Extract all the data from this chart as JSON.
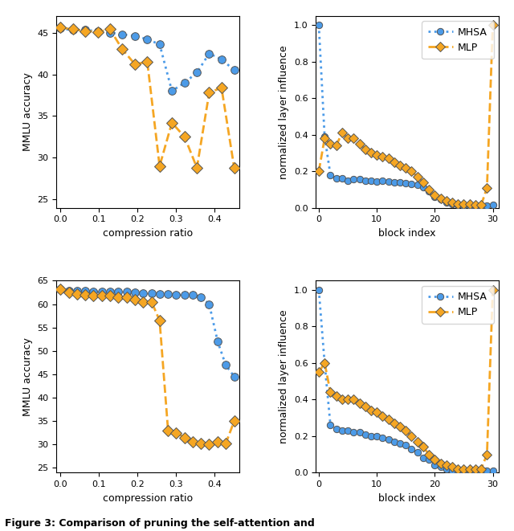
{
  "top_left": {
    "xlabel": "compression ratio",
    "ylabel": "MMLU accuracy",
    "mhsa_x": [
      0.0,
      0.032,
      0.065,
      0.097,
      0.129,
      0.161,
      0.194,
      0.226,
      0.258,
      0.29,
      0.323,
      0.355,
      0.387,
      0.419,
      0.452
    ],
    "mhsa_y": [
      45.5,
      45.3,
      45.3,
      45.2,
      45.0,
      44.8,
      44.6,
      44.2,
      43.6,
      38.0,
      39.0,
      40.2,
      42.5,
      41.8,
      40.5
    ],
    "mlp_x": [
      0.0,
      0.032,
      0.065,
      0.097,
      0.129,
      0.161,
      0.194,
      0.226,
      0.258,
      0.29,
      0.323,
      0.355,
      0.387,
      0.419,
      0.452
    ],
    "mlp_y": [
      45.6,
      45.4,
      45.2,
      45.1,
      45.4,
      43.0,
      41.2,
      41.5,
      29.0,
      34.2,
      32.5,
      28.8,
      37.8,
      38.4,
      28.8
    ],
    "ylim": [
      24,
      47
    ],
    "xlim": [
      -0.01,
      0.465
    ],
    "yticks": [
      25,
      30,
      35,
      40,
      45
    ]
  },
  "top_right": {
    "xlabel": "block index",
    "ylabel": "normalized layer influence",
    "mhsa_x": [
      0,
      1,
      2,
      3,
      4,
      5,
      6,
      7,
      8,
      9,
      10,
      11,
      12,
      13,
      14,
      15,
      16,
      17,
      18,
      19,
      20,
      21,
      22,
      23,
      24,
      25,
      26,
      27,
      28,
      29,
      30
    ],
    "mhsa_y": [
      1.0,
      0.39,
      0.18,
      0.16,
      0.16,
      0.15,
      0.155,
      0.155,
      0.15,
      0.15,
      0.145,
      0.15,
      0.145,
      0.14,
      0.14,
      0.135,
      0.13,
      0.125,
      0.115,
      0.09,
      0.06,
      0.045,
      0.03,
      0.02,
      0.015,
      0.01,
      0.01,
      0.01,
      0.01,
      0.01,
      0.015
    ],
    "mlp_x": [
      0,
      1,
      2,
      3,
      4,
      5,
      6,
      7,
      8,
      9,
      10,
      11,
      12,
      13,
      14,
      15,
      16,
      17,
      18,
      19,
      20,
      21,
      22,
      23,
      24,
      25,
      26,
      27,
      28,
      29,
      30
    ],
    "mlp_y": [
      0.2,
      0.38,
      0.35,
      0.34,
      0.41,
      0.38,
      0.38,
      0.35,
      0.32,
      0.3,
      0.29,
      0.28,
      0.27,
      0.25,
      0.23,
      0.22,
      0.2,
      0.17,
      0.14,
      0.1,
      0.07,
      0.05,
      0.04,
      0.03,
      0.02,
      0.02,
      0.02,
      0.015,
      0.015,
      0.11,
      1.0
    ],
    "ylim": [
      0.0,
      1.05
    ],
    "xlim": [
      -0.5,
      31
    ]
  },
  "bottom_left": {
    "xlabel": "compression ratio",
    "ylabel": "MMLU accuracy",
    "mhsa_x": [
      0.0,
      0.022,
      0.043,
      0.065,
      0.086,
      0.108,
      0.129,
      0.151,
      0.172,
      0.194,
      0.215,
      0.237,
      0.258,
      0.28,
      0.301,
      0.323,
      0.344,
      0.366,
      0.387,
      0.409,
      0.43,
      0.452
    ],
    "mhsa_y": [
      63.2,
      62.9,
      62.8,
      62.8,
      62.7,
      62.7,
      62.7,
      62.7,
      62.6,
      62.5,
      62.4,
      62.3,
      62.2,
      62.1,
      62.0,
      62.0,
      62.0,
      61.5,
      60.0,
      52.0,
      47.0,
      44.5
    ],
    "mlp_x": [
      0.0,
      0.022,
      0.043,
      0.065,
      0.086,
      0.108,
      0.129,
      0.151,
      0.172,
      0.194,
      0.215,
      0.237,
      0.258,
      0.28,
      0.301,
      0.323,
      0.344,
      0.366,
      0.387,
      0.409,
      0.43,
      0.452
    ],
    "mlp_y": [
      63.2,
      62.5,
      62.2,
      62.0,
      61.8,
      61.8,
      61.8,
      61.5,
      61.5,
      61.0,
      60.5,
      60.5,
      56.5,
      33.0,
      32.5,
      31.5,
      30.5,
      30.2,
      30.0,
      30.5,
      30.2,
      35.0
    ],
    "ylim": [
      24,
      65
    ],
    "xlim": [
      -0.01,
      0.465
    ],
    "yticks": [
      30,
      40,
      50,
      60
    ]
  },
  "bottom_right": {
    "xlabel": "block index",
    "ylabel": "normalized layer influence",
    "mhsa_x": [
      0,
      1,
      2,
      3,
      4,
      5,
      6,
      7,
      8,
      9,
      10,
      11,
      12,
      13,
      14,
      15,
      16,
      17,
      18,
      19,
      20,
      21,
      22,
      23,
      24,
      25,
      26,
      27,
      28,
      29,
      30
    ],
    "mhsa_y": [
      1.0,
      0.6,
      0.26,
      0.24,
      0.23,
      0.23,
      0.22,
      0.22,
      0.21,
      0.2,
      0.2,
      0.19,
      0.18,
      0.17,
      0.16,
      0.15,
      0.13,
      0.11,
      0.08,
      0.07,
      0.04,
      0.03,
      0.02,
      0.01,
      0.01,
      0.01,
      0.01,
      0.01,
      0.01,
      0.01,
      0.01
    ],
    "mlp_x": [
      0,
      1,
      2,
      3,
      4,
      5,
      6,
      7,
      8,
      9,
      10,
      11,
      12,
      13,
      14,
      15,
      16,
      17,
      18,
      19,
      20,
      21,
      22,
      23,
      24,
      25,
      26,
      27,
      28,
      29,
      30
    ],
    "mlp_y": [
      0.55,
      0.6,
      0.44,
      0.42,
      0.4,
      0.4,
      0.4,
      0.38,
      0.36,
      0.34,
      0.33,
      0.31,
      0.29,
      0.27,
      0.25,
      0.23,
      0.2,
      0.17,
      0.14,
      0.1,
      0.07,
      0.05,
      0.04,
      0.03,
      0.02,
      0.02,
      0.02,
      0.02,
      0.02,
      0.1,
      1.0
    ],
    "ylim": [
      0.0,
      1.05
    ],
    "xlim": [
      -0.5,
      31
    ]
  },
  "mhsa_color": "#4C9BE8",
  "mlp_color": "#F5A623",
  "linewidth": 2.0,
  "markersize": 7,
  "figure_caption": "Figure 3: Comparison of pruning the self-attention and"
}
